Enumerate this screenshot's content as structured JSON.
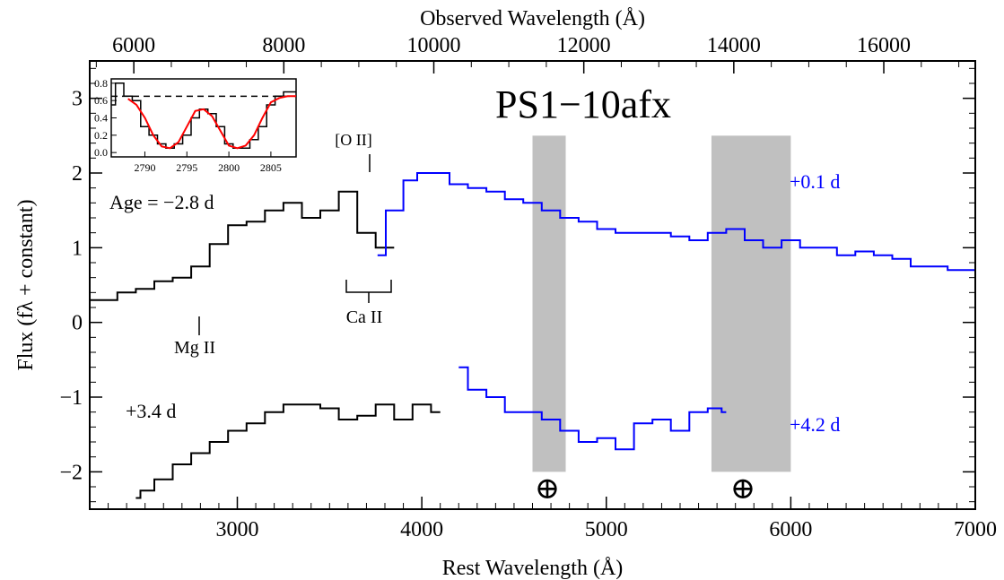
{
  "chart_data": {
    "type": "line",
    "title": "PS1−10afx",
    "xlabel": "Rest Wavelength (Å)",
    "xlabel_top": "Observed Wavelength (Å)",
    "ylabel": "Flux (fλ + constant)",
    "xlim": [
      2200,
      7000
    ],
    "ylim": [
      -2.5,
      3.5
    ],
    "xlim_top": [
      5412,
      17220
    ],
    "x_ticks": [
      3000,
      4000,
      5000,
      6000,
      7000
    ],
    "x_tick_labels": [
      "3000",
      "4000",
      "5000",
      "6000",
      "7000"
    ],
    "x_ticks_top": [
      6000,
      8000,
      10000,
      12000,
      14000,
      16000
    ],
    "x_tick_labels_top": [
      "6000",
      "8000",
      "10000",
      "12000",
      "14000",
      "16000"
    ],
    "y_ticks": [
      -2,
      -1,
      0,
      1,
      2,
      3
    ],
    "y_tick_labels": [
      "−2",
      "−1",
      "0",
      "1",
      "2",
      "3"
    ],
    "grid": false,
    "shaded_regions": [
      {
        "x": [
          4600,
          4780
        ],
        "y": [
          -2.0,
          2.5
        ]
      },
      {
        "x": [
          5570,
          6000
        ],
        "y": [
          -2.0,
          2.5
        ]
      }
    ],
    "series": [
      {
        "color": "#000000",
        "x": [
          2200,
          2300,
          2400,
          2500,
          2600,
          2700,
          2800,
          2900,
          3000,
          3100,
          3200,
          3300,
          3400,
          3500,
          3600,
          3700,
          3800,
          3850
        ],
        "values": [
          0.3,
          0.3,
          0.4,
          0.45,
          0.55,
          0.6,
          0.75,
          1.05,
          1.3,
          1.35,
          1.5,
          1.6,
          1.4,
          1.5,
          1.75,
          1.2,
          1.0,
          1.0
        ]
      },
      {
        "color": "#0000ff",
        "x": [
          3760,
          3850,
          3950,
          4000,
          4100,
          4200,
          4300,
          4400,
          4500,
          4600,
          4700,
          4800,
          4900,
          5000,
          5100,
          5200,
          5300,
          5400,
          5500,
          5600,
          5700,
          5800,
          5900,
          6000,
          6100,
          6200,
          6300,
          6400,
          6500,
          6600,
          6700,
          6800,
          6900,
          7000
        ],
        "values": [
          0.9,
          1.5,
          1.9,
          2.0,
          2.0,
          1.85,
          1.8,
          1.75,
          1.65,
          1.6,
          1.5,
          1.4,
          1.35,
          1.25,
          1.2,
          1.2,
          1.2,
          1.15,
          1.1,
          1.2,
          1.25,
          1.1,
          1.0,
          1.1,
          1.0,
          1.0,
          0.9,
          0.95,
          0.9,
          0.85,
          0.75,
          0.75,
          0.7,
          0.7
        ]
      },
      {
        "color": "#000000",
        "x": [
          2450,
          2500,
          2600,
          2700,
          2800,
          2900,
          3000,
          3100,
          3200,
          3300,
          3400,
          3500,
          3600,
          3700,
          3800,
          3900,
          4000,
          4100
        ],
        "values": [
          -2.35,
          -2.25,
          -2.1,
          -1.9,
          -1.75,
          -1.6,
          -1.45,
          -1.35,
          -1.2,
          -1.1,
          -1.1,
          -1.15,
          -1.3,
          -1.25,
          -1.1,
          -1.3,
          -1.1,
          -1.2
        ]
      },
      {
        "color": "#0000ff",
        "x": [
          4200,
          4300,
          4400,
          4500,
          4600,
          4700,
          4800,
          4900,
          5000,
          5100,
          5200,
          5300,
          5400,
          5500,
          5600,
          5650
        ],
        "values": [
          -0.6,
          -0.9,
          -1.0,
          -1.2,
          -1.2,
          -1.3,
          -1.45,
          -1.6,
          -1.55,
          -1.7,
          -1.35,
          -1.3,
          -1.45,
          -1.2,
          -1.15,
          -1.2
        ]
      }
    ],
    "labels": {
      "upper_epoch": "Age = −2.8 d",
      "lower_epoch": "+3.4 d",
      "upper_epoch_nir": "+0.1 d",
      "lower_epoch_nir": "+4.2 d",
      "line_oii": "[O II]",
      "line_caii": "Ca II",
      "line_mgii": "Mg II",
      "telluric_symbol": "⊕"
    },
    "inset": {
      "type": "line",
      "xlim": [
        2786,
        2808
      ],
      "ylim": [
        -0.05,
        0.85
      ],
      "x_ticks": [
        2790,
        2795,
        2800,
        2805
      ],
      "x_tick_labels": [
        "2790",
        "2795",
        "2800",
        "2805"
      ],
      "y_ticks": [
        0.0,
        0.2,
        0.4,
        0.6,
        0.8
      ],
      "y_tick_labels": [
        "0.0",
        "0.2",
        "0.4",
        "0.6",
        "0.8"
      ],
      "continuum_level": 0.65,
      "series": [
        {
          "color": "#000000",
          "x": [
            2786,
            2787,
            2788,
            2789,
            2790,
            2791,
            2792,
            2793,
            2794,
            2795,
            2796,
            2797,
            2798,
            2799,
            2800,
            2801,
            2802,
            2803,
            2804,
            2805,
            2806,
            2807,
            2808
          ],
          "values": [
            0.55,
            0.8,
            0.65,
            0.6,
            0.3,
            0.2,
            0.1,
            0.05,
            0.1,
            0.2,
            0.4,
            0.5,
            0.45,
            0.3,
            0.1,
            0.05,
            0.05,
            0.15,
            0.3,
            0.55,
            0.65,
            0.7,
            0.7
          ]
        },
        {
          "color": "#ff0000",
          "x": [
            2788,
            2789,
            2790,
            2791,
            2792,
            2793,
            2794,
            2795,
            2796,
            2797,
            2798,
            2799,
            2800,
            2801,
            2802,
            2803,
            2804,
            2805,
            2806,
            2807,
            2808
          ],
          "values": [
            0.62,
            0.55,
            0.4,
            0.2,
            0.07,
            0.05,
            0.12,
            0.3,
            0.48,
            0.5,
            0.42,
            0.25,
            0.08,
            0.05,
            0.08,
            0.2,
            0.4,
            0.58,
            0.63,
            0.65,
            0.65
          ]
        }
      ]
    }
  }
}
